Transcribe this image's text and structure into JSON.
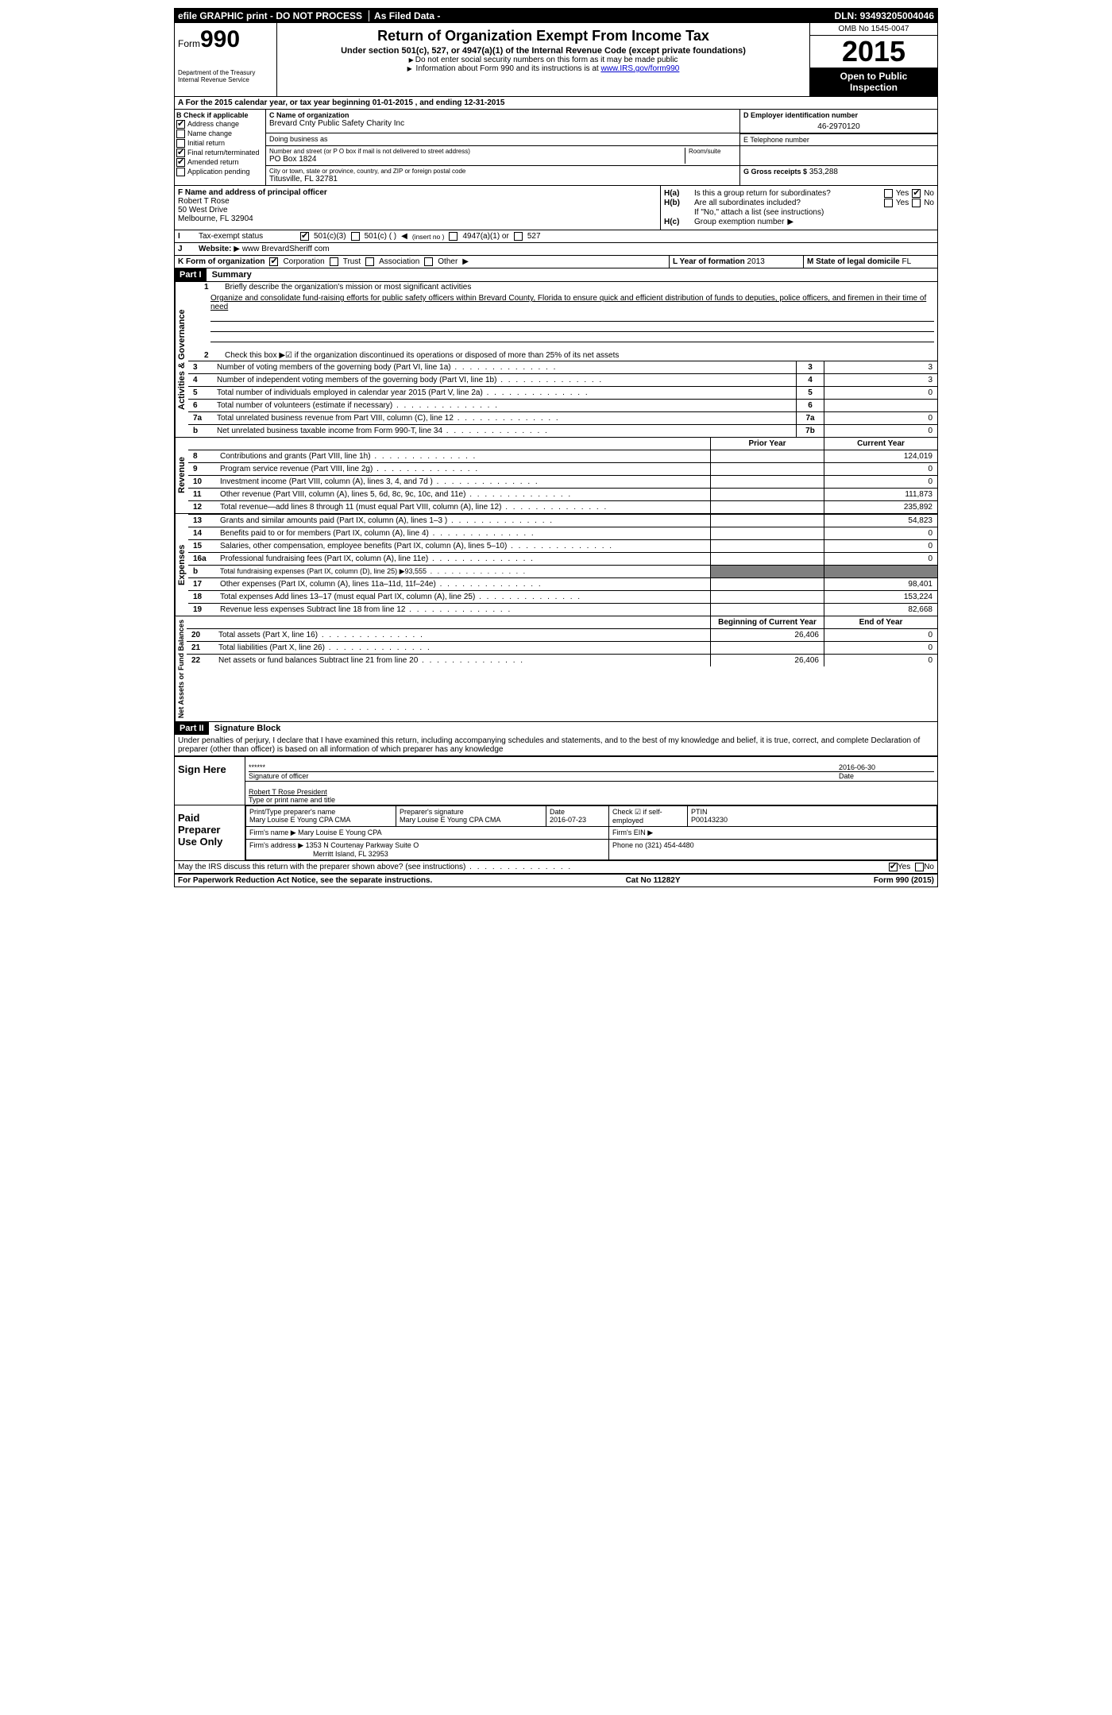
{
  "topbar": {
    "efile": "efile GRAPHIC print - DO NOT PROCESS",
    "asfiled": "As Filed Data -",
    "dln_label": "DLN:",
    "dln": "93493205004046"
  },
  "header": {
    "form_label": "Form",
    "form_number": "990",
    "dept1": "Department of the Treasury",
    "dept2": "Internal Revenue Service",
    "title": "Return of Organization Exempt From Income Tax",
    "subtitle": "Under section 501(c), 527, or 4947(a)(1) of the Internal Revenue Code (except private foundations)",
    "note1": "Do not enter social security numbers on this form as it may be made public",
    "note2": "Information about Form 990 and its instructions is at ",
    "note2_link": "www.IRS.gov/form990",
    "omb": "OMB No 1545-0047",
    "year": "2015",
    "open1": "Open to Public",
    "open2": "Inspection"
  },
  "row_a": "A  For the 2015 calendar year, or tax year beginning 01-01-2015    , and ending 12-31-2015",
  "col_b": {
    "title": "B Check if applicable",
    "address_change": "Address change",
    "name_change": "Name change",
    "initial_return": "Initial return",
    "final_return": "Final return/terminated",
    "amended_return": "Amended return",
    "application_pending": "Application pending"
  },
  "col_c": {
    "name_lbl": "C Name of organization",
    "name": "Brevard Cnty Public Safety Charity Inc",
    "dba_lbl": "Doing business as",
    "dba": "",
    "street_lbl": "Number and street (or P O  box if mail is not delivered to street address)",
    "room_lbl": "Room/suite",
    "street": "PO Box 1824",
    "city_lbl": "City or town, state or province, country, and ZIP or foreign postal code",
    "city": "Titusville, FL  32781"
  },
  "col_d": {
    "lbl": "D Employer identification number",
    "val": "46-2970120"
  },
  "col_e": {
    "lbl": "E Telephone number",
    "val": ""
  },
  "col_g": {
    "lbl": "G Gross receipts $",
    "val": "353,288"
  },
  "col_f": {
    "lbl": "F  Name and address of principal officer",
    "name": "Robert T Rose",
    "addr1": "50 West Drive",
    "addr2": "Melbourne, FL  32904"
  },
  "col_h": {
    "ha_lbl": "Is this a group return for subordinates?",
    "ha_yes": "Yes",
    "ha_no": "No",
    "hb_lbl": "Are all subordinates included?",
    "hb_yes": "Yes",
    "hb_no": "No",
    "note": "If \"No,\" attach a list  (see instructions)",
    "hc_lbl": "Group exemption number"
  },
  "row_i": {
    "lbl": "Tax-exempt status",
    "o1": "501(c)(3)",
    "o2": "501(c) (   )",
    "o2_note": "(insert no )",
    "o3": "4947(a)(1) or",
    "o4": "527"
  },
  "row_j": {
    "lbl": "Website:",
    "val": "www BrevardSheriff com"
  },
  "row_k": {
    "lbl": "K Form of organization",
    "corp": "Corporation",
    "trust": "Trust",
    "assoc": "Association",
    "other": "Other"
  },
  "row_l": {
    "lbl": "L Year of formation",
    "val": "2013"
  },
  "row_m": {
    "lbl": "M State of legal domicile",
    "val": "FL"
  },
  "parts": {
    "p1": "Part I",
    "p1_title": "Summary",
    "p2": "Part II",
    "p2_title": "Signature Block"
  },
  "summary": {
    "line1_lbl": "1",
    "line1_txt": "Briefly describe the organization's mission or most significant activities",
    "mission": "Organize and consolidate fund-raising efforts for public safety officers within Brevard County, Florida to ensure quick and efficient distribution of funds to deputies, police officers, and firemen in their time of need",
    "line2_lbl": "2",
    "line2_txt": "Check this box ▶☑ if the organization discontinued its operations or disposed of more than 25% of its net assets",
    "rows": [
      {
        "n": "3",
        "t": "Number of voting members of the governing body (Part VI, line 1a)",
        "c": "3",
        "v": "3"
      },
      {
        "n": "4",
        "t": "Number of independent voting members of the governing body (Part VI, line 1b)",
        "c": "4",
        "v": "3"
      },
      {
        "n": "5",
        "t": "Total number of individuals employed in calendar year 2015 (Part V, line 2a)",
        "c": "5",
        "v": "0"
      },
      {
        "n": "6",
        "t": "Total number of volunteers (estimate if necessary)",
        "c": "6",
        "v": ""
      },
      {
        "n": "7a",
        "t": "Total unrelated business revenue from Part VIII, column (C), line 12",
        "c": "7a",
        "v": "0"
      },
      {
        "n": "b",
        "t": "Net unrelated business taxable income from Form 990-T, line 34",
        "c": "7b",
        "v": "0"
      }
    ]
  },
  "fin_headers": {
    "prior": "Prior Year",
    "current": "Current Year",
    "boy": "Beginning of Current Year",
    "eoy": "End of Year"
  },
  "revenue": [
    {
      "n": "8",
      "t": "Contributions and grants (Part VIII, line 1h)",
      "p": "",
      "c": "124,019"
    },
    {
      "n": "9",
      "t": "Program service revenue (Part VIII, line 2g)",
      "p": "",
      "c": "0"
    },
    {
      "n": "10",
      "t": "Investment income (Part VIII, column (A), lines 3, 4, and 7d )",
      "p": "",
      "c": "0"
    },
    {
      "n": "11",
      "t": "Other revenue (Part VIII, column (A), lines 5, 6d, 8c, 9c, 10c, and 11e)",
      "p": "",
      "c": "111,873"
    },
    {
      "n": "12",
      "t": "Total revenue—add lines 8 through 11 (must equal Part VIII, column (A), line 12)",
      "p": "",
      "c": "235,892"
    }
  ],
  "expenses": [
    {
      "n": "13",
      "t": "Grants and similar amounts paid (Part IX, column (A), lines 1–3 )",
      "p": "",
      "c": "54,823"
    },
    {
      "n": "14",
      "t": "Benefits paid to or for members (Part IX, column (A), line 4)",
      "p": "",
      "c": "0"
    },
    {
      "n": "15",
      "t": "Salaries, other compensation, employee benefits (Part IX, column (A), lines 5–10)",
      "p": "",
      "c": "0"
    },
    {
      "n": "16a",
      "t": "Professional fundraising fees (Part IX, column (A), line 11e)",
      "p": "",
      "c": "0"
    },
    {
      "n": "b",
      "t": "Total fundraising expenses (Part IX, column (D), line 25) ▶93,555",
      "p": "BLACK",
      "c": "BLACK",
      "small": true
    },
    {
      "n": "17",
      "t": "Other expenses (Part IX, column (A), lines 11a–11d, 11f–24e)",
      "p": "",
      "c": "98,401"
    },
    {
      "n": "18",
      "t": "Total expenses  Add lines 13–17 (must equal Part IX, column (A), line 25)",
      "p": "",
      "c": "153,224"
    },
    {
      "n": "19",
      "t": "Revenue less expenses  Subtract line 18 from line 12",
      "p": "",
      "c": "82,668"
    }
  ],
  "netassets": [
    {
      "n": "20",
      "t": "Total assets (Part X, line 16)",
      "p": "26,406",
      "c": "0"
    },
    {
      "n": "21",
      "t": "Total liabilities (Part X, line 26)",
      "p": "",
      "c": "0"
    },
    {
      "n": "22",
      "t": "Net assets or fund balances  Subtract line 21 from line 20",
      "p": "26,406",
      "c": "0"
    }
  ],
  "side_labels": {
    "gov": "Activities & Governance",
    "rev": "Revenue",
    "exp": "Expenses",
    "net": "Net Assets or Fund Balances"
  },
  "perjury": "Under penalties of perjury, I declare that I have examined this return, including accompanying schedules and statements, and to the best of my knowledge and belief, it is true, correct, and complete  Declaration of preparer (other than officer) is based on all information of which preparer has any knowledge",
  "sign": {
    "lbl": "Sign Here",
    "stars": "******",
    "sig_lbl": "Signature of officer",
    "date_lbl": "Date",
    "date": "2016-06-30",
    "name": "Robert T Rose President",
    "name_lbl": "Type or print name and title"
  },
  "preparer": {
    "lbl": "Paid Preparer Use Only",
    "name_lbl": "Print/Type preparer's name",
    "name": "Mary Louise E Young CPA CMA",
    "sig_lbl": "Preparer's signature",
    "sig": "Mary Louise E Young CPA CMA",
    "date_lbl": "Date",
    "date": "2016-07-23",
    "check_lbl": "Check ☑ if self-employed",
    "ptin_lbl": "PTIN",
    "ptin": "P00143230",
    "firm_name_lbl": "Firm's name",
    "firm_name": "Mary Louise E Young CPA",
    "firm_ein_lbl": "Firm's EIN",
    "firm_ein": "",
    "firm_addr_lbl": "Firm's address",
    "firm_addr1": "1353 N Courtenay Parkway Suite O",
    "firm_addr2": "Merritt Island, FL  32953",
    "phone_lbl": "Phone no",
    "phone": "(321) 454-4480"
  },
  "discuss": {
    "txt": "May the IRS discuss this return with the preparer shown above? (see instructions)",
    "yes": "Yes",
    "no": "No"
  },
  "footer": {
    "left": "For Paperwork Reduction Act Notice, see the separate instructions.",
    "mid": "Cat No  11282Y",
    "right": "Form 990 (2015)"
  }
}
